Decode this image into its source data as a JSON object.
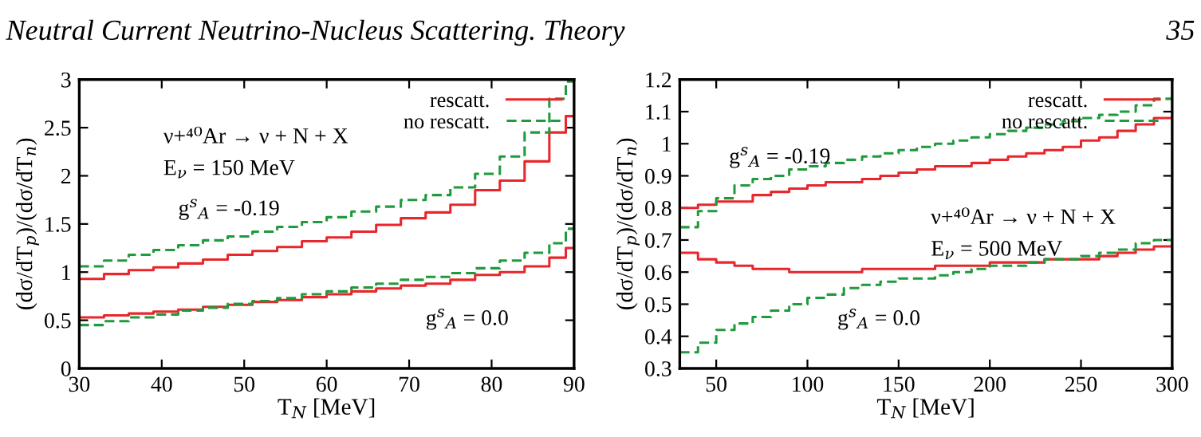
{
  "chart_data": [
    {
      "type": "step",
      "xlabel": "T$_{N}$ [MeV]",
      "ylabel": "(dσ/dT$_{p}$)/(dσ/dT$_{n}$)",
      "xlim": [
        30,
        90
      ],
      "xticks": [
        30,
        40,
        50,
        60,
        70,
        80,
        90
      ],
      "ylim": [
        0,
        3
      ],
      "yticks": [
        0,
        0.5,
        1,
        1.5,
        2,
        2.5,
        3
      ],
      "grid": false,
      "legend": "top right",
      "annotations": [
        "Neutral Current Neutrino-Nucleus Scattering. Theory",
        "ν+⁴⁰Ar → ν + N + X",
        "E$_{ν}$ = 150 MeV",
        "g$^{s}$$_{A}$ = -0.19",
        "g$^{s}$$_{A}$ = 0.0"
      ],
      "series": [
        {
          "name": "rescatt.",
          "color": "#e8262b",
          "line_style": "solid",
          "x": [
            30,
            33,
            36,
            39,
            42,
            45,
            48,
            51,
            54,
            57,
            60,
            63,
            66,
            69,
            72,
            75,
            78,
            81,
            84,
            87,
            89,
            90
          ],
          "values": [
            0.93,
            0.98,
            1.02,
            1.05,
            1.09,
            1.13,
            1.18,
            1.22,
            1.26,
            1.32,
            1.36,
            1.42,
            1.49,
            1.56,
            1.62,
            1.7,
            1.85,
            1.95,
            2.15,
            2.45,
            2.62,
            2.62
          ]
        },
        {
          "name": "no rescatt.",
          "color": "#1f9a3c",
          "line_style": "dashed",
          "x": [
            30,
            33,
            36,
            39,
            42,
            45,
            48,
            51,
            54,
            57,
            60,
            63,
            66,
            69,
            72,
            75,
            78,
            81,
            84,
            87,
            89,
            90
          ],
          "values": [
            1.06,
            1.12,
            1.18,
            1.23,
            1.28,
            1.33,
            1.37,
            1.42,
            1.47,
            1.52,
            1.57,
            1.63,
            1.68,
            1.75,
            1.8,
            1.88,
            2.02,
            2.2,
            2.45,
            2.8,
            2.98,
            2.98
          ]
        },
        {
          "color": "#e8262b",
          "line_style": "solid",
          "x": [
            30,
            33,
            36,
            39,
            42,
            45,
            48,
            51,
            54,
            57,
            60,
            63,
            66,
            69,
            72,
            75,
            78,
            81,
            84,
            87,
            89,
            90
          ],
          "values": [
            0.53,
            0.55,
            0.57,
            0.59,
            0.61,
            0.64,
            0.66,
            0.69,
            0.71,
            0.74,
            0.77,
            0.8,
            0.83,
            0.86,
            0.88,
            0.92,
            0.97,
            1.0,
            1.06,
            1.15,
            1.25,
            1.25
          ]
        },
        {
          "color": "#1f9a3c",
          "line_style": "dashed",
          "x": [
            30,
            33,
            36,
            39,
            42,
            45,
            48,
            51,
            54,
            57,
            60,
            63,
            66,
            69,
            72,
            75,
            78,
            81,
            84,
            87,
            89,
            90
          ],
          "values": [
            0.45,
            0.49,
            0.53,
            0.56,
            0.6,
            0.63,
            0.67,
            0.7,
            0.73,
            0.77,
            0.8,
            0.84,
            0.88,
            0.92,
            0.95,
            0.99,
            1.04,
            1.12,
            1.2,
            1.3,
            1.45,
            1.45
          ]
        }
      ]
    },
    {
      "type": "step",
      "xlabel": "T$_{N}$ [MeV]",
      "ylabel": "(dσ/dT$_{p}$)/(dσ/dT$_{n}$)",
      "xlim": [
        30,
        300
      ],
      "xticks": [
        50,
        100,
        150,
        200,
        250,
        300
      ],
      "ylim": [
        0.3,
        1.2
      ],
      "yticks": [
        0.3,
        0.4,
        0.5,
        0.6,
        0.7,
        0.8,
        0.9,
        1,
        1.1,
        1.2
      ],
      "grid": false,
      "legend": "top right",
      "annotations": [
        "35",
        "ν+⁴⁰Ar → ν + N + X",
        "E$_{ν}$ = 500 MeV",
        "g$^{s}$$_{A}$ = -0.19",
        "g$^{s}$$_{A}$ = 0.0"
      ],
      "series": [
        {
          "name": "rescatt.",
          "color": "#e8262b",
          "line_style": "solid",
          "x": [
            30,
            40,
            50,
            60,
            70,
            80,
            90,
            100,
            110,
            120,
            130,
            140,
            150,
            160,
            170,
            180,
            190,
            200,
            210,
            220,
            230,
            240,
            250,
            260,
            270,
            280,
            290,
            300
          ],
          "values": [
            0.8,
            0.81,
            0.82,
            0.82,
            0.84,
            0.85,
            0.86,
            0.87,
            0.88,
            0.88,
            0.89,
            0.9,
            0.91,
            0.92,
            0.93,
            0.93,
            0.94,
            0.95,
            0.96,
            0.97,
            0.98,
            0.99,
            1.01,
            1.02,
            1.04,
            1.06,
            1.08,
            1.08
          ]
        },
        {
          "name": "no rescatt.",
          "color": "#1f9a3c",
          "line_style": "dashed",
          "x": [
            30,
            40,
            50,
            60,
            70,
            80,
            90,
            100,
            110,
            120,
            130,
            140,
            150,
            160,
            170,
            180,
            190,
            200,
            210,
            220,
            230,
            240,
            250,
            260,
            270,
            280,
            290,
            300
          ],
          "values": [
            0.74,
            0.79,
            0.83,
            0.87,
            0.89,
            0.9,
            0.92,
            0.93,
            0.94,
            0.95,
            0.96,
            0.97,
            0.98,
            0.99,
            1.0,
            1.01,
            1.02,
            1.03,
            1.04,
            1.05,
            1.06,
            1.07,
            1.08,
            1.09,
            1.1,
            1.12,
            1.14,
            1.15
          ]
        },
        {
          "color": "#e8262b",
          "line_style": "solid",
          "x": [
            30,
            40,
            50,
            60,
            70,
            80,
            90,
            100,
            110,
            120,
            130,
            140,
            150,
            160,
            170,
            180,
            190,
            200,
            210,
            220,
            230,
            240,
            250,
            260,
            270,
            280,
            290,
            300
          ],
          "values": [
            0.66,
            0.64,
            0.63,
            0.62,
            0.61,
            0.61,
            0.6,
            0.6,
            0.6,
            0.6,
            0.61,
            0.61,
            0.61,
            0.61,
            0.62,
            0.62,
            0.62,
            0.63,
            0.63,
            0.63,
            0.64,
            0.64,
            0.64,
            0.65,
            0.66,
            0.67,
            0.68,
            0.68
          ]
        },
        {
          "color": "#1f9a3c",
          "line_style": "dashed",
          "x": [
            30,
            40,
            50,
            60,
            70,
            80,
            90,
            100,
            110,
            120,
            130,
            140,
            150,
            160,
            170,
            180,
            190,
            200,
            210,
            220,
            230,
            240,
            250,
            260,
            270,
            280,
            290,
            300
          ],
          "values": [
            0.35,
            0.38,
            0.42,
            0.44,
            0.46,
            0.48,
            0.5,
            0.52,
            0.53,
            0.55,
            0.56,
            0.57,
            0.58,
            0.58,
            0.59,
            0.6,
            0.61,
            0.62,
            0.62,
            0.63,
            0.64,
            0.64,
            0.65,
            0.66,
            0.67,
            0.69,
            0.7,
            0.7
          ]
        }
      ]
    }
  ]
}
